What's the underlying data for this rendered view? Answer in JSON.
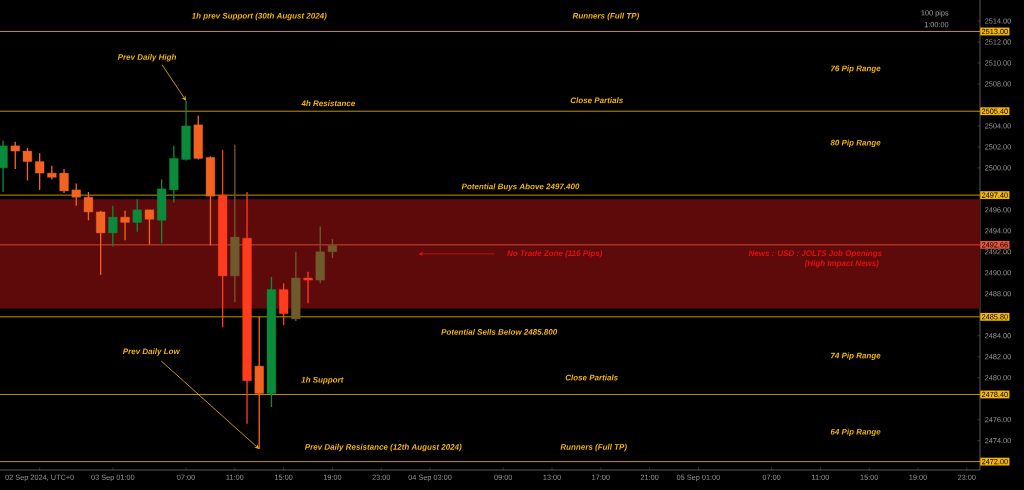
{
  "chart_data": {
    "type": "candlestick",
    "x": [
      "2024-09-02T16:00",
      "2024-09-02T17:00",
      "2024-09-02T18:00",
      "2024-09-02T19:00",
      "2024-09-02T20:00",
      "2024-09-02T21:00",
      "2024-09-02T22:00",
      "2024-09-02T23:00",
      "2024-09-03T00:00",
      "2024-09-03T01:00",
      "2024-09-03T02:00",
      "2024-09-03T03:00",
      "2024-09-03T04:00",
      "2024-09-03T05:00",
      "2024-09-03T06:00",
      "2024-09-03T07:00",
      "2024-09-03T08:00",
      "2024-09-03T09:00",
      "2024-09-03T10:00",
      "2024-09-03T11:00",
      "2024-09-03T12:00",
      "2024-09-03T13:00",
      "2024-09-03T14:00",
      "2024-09-03T15:00",
      "2024-09-03T16:00",
      "2024-09-03T17:00",
      "2024-09-03T18:00",
      "2024-09-03T19:00"
    ],
    "ohlc": [
      [
        2500.0,
        2502.6,
        2497.7,
        2502.1
      ],
      [
        2502.1,
        2502.5,
        2499.9,
        2501.6
      ],
      [
        2501.6,
        2501.9,
        2498.8,
        2500.6
      ],
      [
        2500.6,
        2501.4,
        2497.9,
        2499.5
      ],
      [
        2499.5,
        2500.2,
        2498.9,
        2499.1
      ],
      [
        2499.5,
        2499.9,
        2497.6,
        2497.8
      ],
      [
        2497.9,
        2498.5,
        2496.4,
        2497.2
      ],
      [
        2497.2,
        2497.7,
        2495.0,
        2495.8
      ],
      [
        2495.8,
        2495.9,
        2489.8,
        2493.8
      ],
      [
        2493.8,
        2496.4,
        2492.5,
        2495.3
      ],
      [
        2495.3,
        2495.9,
        2493.1,
        2494.8
      ],
      [
        2494.8,
        2497.0,
        2493.9,
        2496.0
      ],
      [
        2496.0,
        2496.0,
        2492.7,
        2495.1
      ],
      [
        2495.0,
        2498.9,
        2492.8,
        2498.0
      ],
      [
        2497.9,
        2502.1,
        2496.7,
        2500.9
      ],
      [
        2500.8,
        2506.4,
        2500.7,
        2504.0
      ],
      [
        2504.1,
        2505.0,
        2500.8,
        2500.9
      ],
      [
        2501.0,
        2501.1,
        2492.6,
        2497.3
      ],
      [
        2497.4,
        2501.7,
        2484.8,
        2489.7
      ],
      [
        2489.7,
        2502.2,
        2487.2,
        2493.4
      ],
      [
        2493.3,
        2497.7,
        2475.6,
        2479.7
      ],
      [
        2481.1,
        2485.8,
        2473.2,
        2478.5
      ],
      [
        2478.5,
        2489.6,
        2477.2,
        2488.4
      ],
      [
        2488.4,
        2489.0,
        2485.0,
        2486.1
      ],
      [
        2485.6,
        2492.0,
        2485.4,
        2489.5
      ],
      [
        2489.5,
        2490.1,
        2487.1,
        2489.3
      ],
      [
        2489.3,
        2494.4,
        2489.0,
        2492.0
      ],
      [
        2492.0,
        2493.2,
        2491.4,
        2492.6
      ]
    ],
    "colors": [
      "#0a8a3a",
      "#f26322",
      "#f26322",
      "#f26322",
      "#f26322",
      "#f26322",
      "#f26322",
      "#f26322",
      "#f26322",
      "#0a8a3a",
      "#f26322",
      "#0a8a3a",
      "#f26322",
      "#0a8a3a",
      "#0a8a3a",
      "#0a8a3a",
      "#f26322",
      "#f26322",
      "#ff3c1e",
      "#6e5a2c",
      "#ff3c1e",
      "#f26322",
      "#0a8a3a",
      "#ff3c1e",
      "#6e5a2c",
      "#ff3c1e",
      "#6e5a2c",
      "#6e5a2c"
    ],
    "xlim": [
      "2024-09-02T15:45",
      "2024-09-06T00:05"
    ],
    "xticks": [
      {
        "value": "2024-09-02T19:00",
        "label": "02 Sep 2024, UTC+0"
      },
      {
        "value": "2024-09-03T01:00",
        "label": "03 Sep 01:00"
      },
      {
        "value": "2024-09-03T07:00",
        "label": "07:00"
      },
      {
        "value": "2024-09-03T11:00",
        "label": "11:00"
      },
      {
        "value": "2024-09-03T15:00",
        "label": "15:00"
      },
      {
        "value": "2024-09-03T19:00",
        "label": "19:00"
      },
      {
        "value": "2024-09-03T23:00",
        "label": "23:00"
      },
      {
        "value": "2024-09-04T03:00",
        "label": "04 Sep 03:00"
      },
      {
        "value": "2024-09-04T09:00",
        "label": "09:00"
      },
      {
        "value": "2024-09-04T13:00",
        "label": "13:00"
      },
      {
        "value": "2024-09-04T17:00",
        "label": "17:00"
      },
      {
        "value": "2024-09-04T21:00",
        "label": "21:00"
      },
      {
        "value": "2024-09-05T01:00",
        "label": "05 Sep 01:00"
      },
      {
        "value": "2024-09-05T07:00",
        "label": "07:00"
      },
      {
        "value": "2024-09-05T11:00",
        "label": "11:00"
      },
      {
        "value": "2024-09-05T15:00",
        "label": "15:00"
      },
      {
        "value": "2024-09-05T19:00",
        "label": "19:00"
      },
      {
        "value": "2024-09-05T23:00",
        "label": "23:00"
      }
    ],
    "ylim": [
      2471.2,
      2516.0
    ],
    "yticks": [
      {
        "value": 2474,
        "label": "2474.00"
      },
      {
        "value": 2476,
        "label": "2476.00"
      },
      {
        "value": 2480,
        "label": "2480.00"
      },
      {
        "value": 2482,
        "label": "2482.00"
      },
      {
        "value": 2484,
        "label": "2484.00"
      },
      {
        "value": 2488,
        "label": "2488.00"
      },
      {
        "value": 2490,
        "label": "2490.00"
      },
      {
        "value": 2492,
        "label": "2492.00"
      },
      {
        "value": 2494,
        "label": "2494.00"
      },
      {
        "value": 2496,
        "label": "2496.00"
      },
      {
        "value": 2500,
        "label": "2500.00"
      },
      {
        "value": 2502,
        "label": "2502.00"
      },
      {
        "value": 2504,
        "label": "2504.00"
      },
      {
        "value": 2508,
        "label": "2508.00"
      },
      {
        "value": 2510,
        "label": "2510.00"
      },
      {
        "value": 2512,
        "label": "2512.00"
      },
      {
        "value": 2514,
        "label": "2514.00"
      }
    ],
    "bands": [
      {
        "axis": "y",
        "from": 2486.6,
        "to": 2497.0,
        "color": "#5e0a0a",
        "label": "No Trade Zone (116 Pips)"
      }
    ],
    "ref_lines": [
      {
        "axis": "y",
        "value": 2513.0,
        "label": "2513.00",
        "color": "#f5b800"
      },
      {
        "axis": "y",
        "value": 2505.4,
        "label": "2505.40",
        "color": "#f5b800"
      },
      {
        "axis": "y",
        "value": 2497.4,
        "label": "2497.40",
        "color": "#f5b800"
      },
      {
        "axis": "y",
        "value": 2492.66,
        "label": "2492.66",
        "color": "#e8553a"
      },
      {
        "axis": "y",
        "value": 2485.8,
        "label": "2485.80",
        "color": "#f5b800"
      },
      {
        "axis": "y",
        "value": 2478.4,
        "label": "2478.40",
        "color": "#f5b800"
      },
      {
        "axis": "y",
        "value": 2472.0,
        "label": "2472.00",
        "color": "#f5b800"
      }
    ],
    "annotations": [
      {
        "text": "1h prev Support (30th August 2024)",
        "x": "2024-09-03T13:00",
        "y": 2513.0
      },
      {
        "text": "Runners (Full TP)",
        "x": "2024-09-04T17:25",
        "y": 2513.0
      },
      {
        "text": "Prev Daily High",
        "x": "2024-09-03T07:00",
        "y": 2506.4
      },
      {
        "text": "4h Resistance",
        "x": "2024-09-03T18:40",
        "y": 2505.4
      },
      {
        "text": "Close Partials",
        "x": "2024-09-04T16:40",
        "y": 2505.4
      },
      {
        "text": "Potential Buys Above 2497.400",
        "x": "2024-09-04T10:25",
        "y": 2497.4
      },
      {
        "text": "News : USD : JOLTS Job Openings",
        "x": "2024-09-05T10:35",
        "y": 2492.66
      },
      {
        "text": "(High Impact News)",
        "x": "2024-09-05T12:45",
        "y": 2492.66
      },
      {
        "text": "Potential Sells Below 2485.800",
        "x": "2024-09-04T08:40",
        "y": 2485.8
      },
      {
        "text": "Prev Daily Low",
        "x": "2024-09-03T13:00",
        "y": 2473.2
      },
      {
        "text": "1h Support",
        "x": "2024-09-03T18:10",
        "y": 2478.4
      },
      {
        "text": "Close Partials",
        "x": "2024-09-04T16:15",
        "y": 2478.4
      },
      {
        "text": "Prev Daily Resistance (12th August 2024)",
        "x": "2024-09-03T23:10",
        "y": 2472.0
      },
      {
        "text": "Runners (Full TP)",
        "x": "2024-09-04T16:25",
        "y": 2472.0
      },
      "76 Pip Range",
      "80 Pip Range",
      "74 Pip Range",
      "64 Pip Range",
      "100 pips",
      "1:00:00"
    ]
  }
}
